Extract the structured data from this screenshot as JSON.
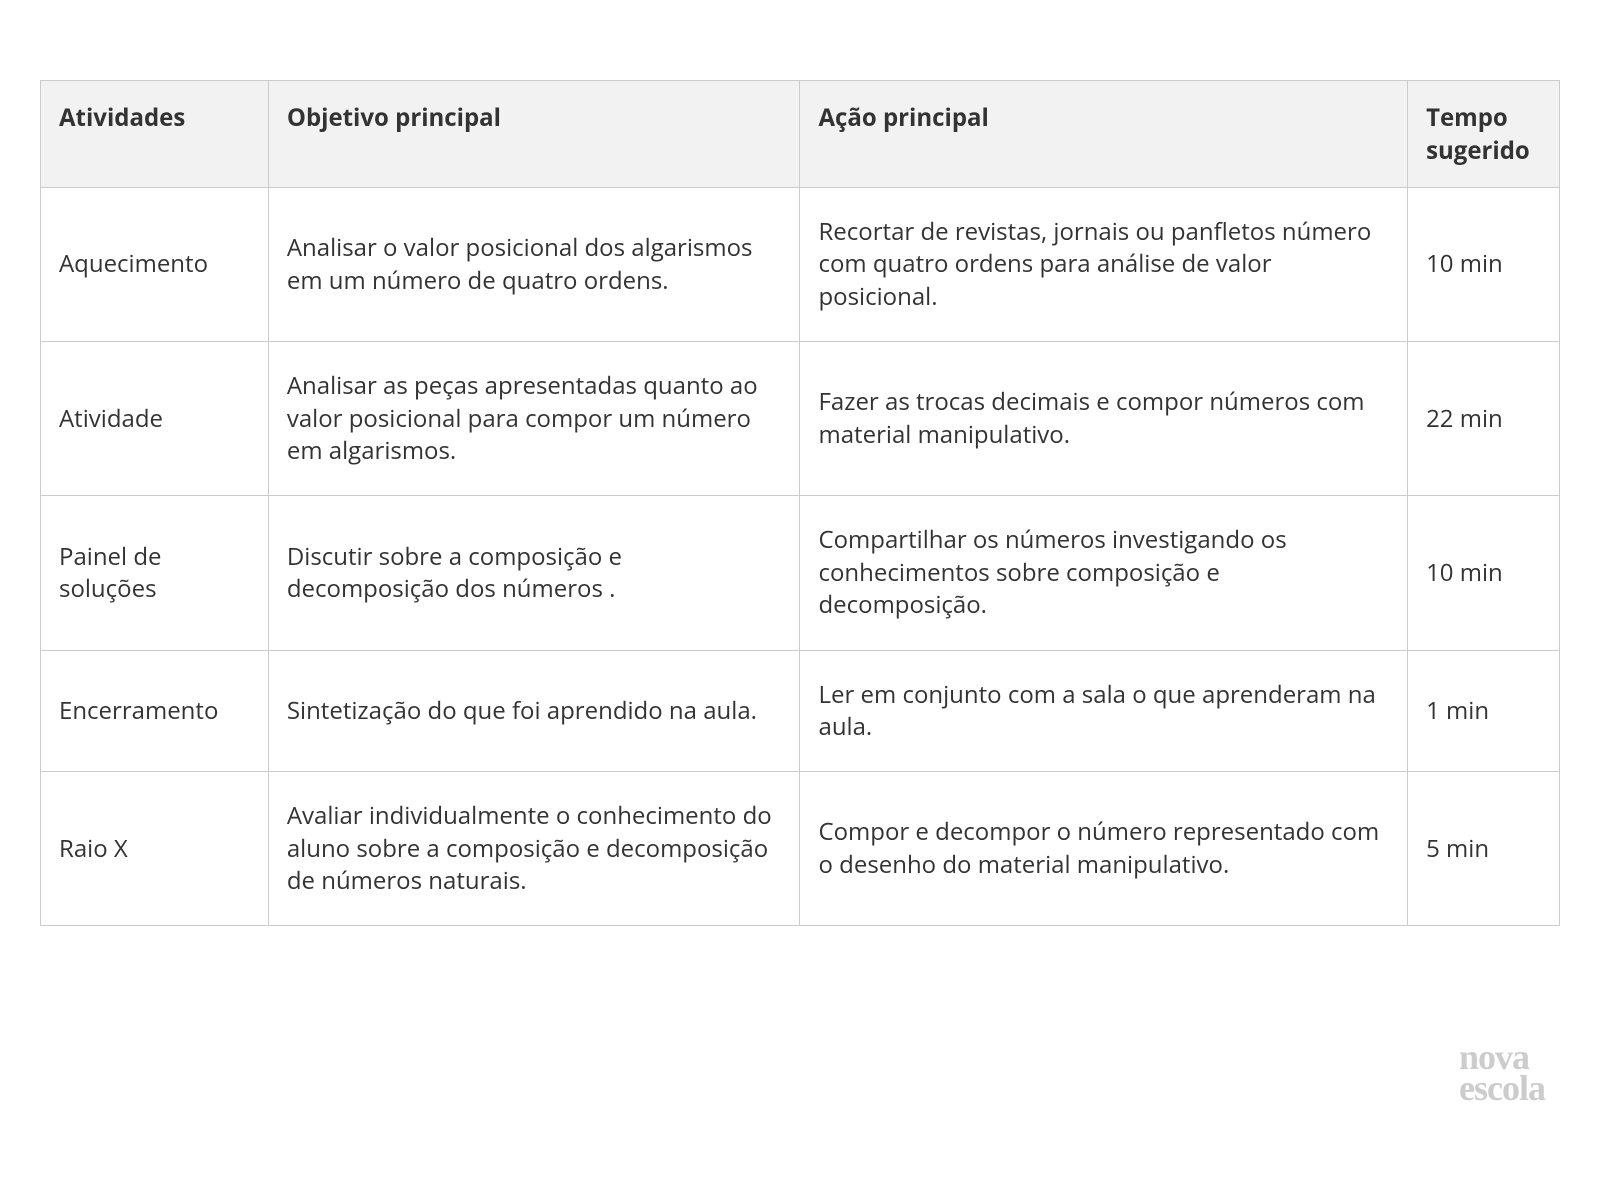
{
  "table": {
    "columns": [
      "Atividades",
      "Objetivo principal",
      "Ação principal",
      "Tempo sugerido"
    ],
    "rows": [
      {
        "atividade": "Aquecimento",
        "objetivo": "Analisar o valor posicional dos algarismos em um número de quatro ordens.",
        "acao": "Recortar de revistas, jornais ou panfletos número com quatro ordens para  análise de valor posicional.",
        "tempo": "10 min"
      },
      {
        "atividade": "Atividade",
        "objetivo": "Analisar as peças apresentadas quanto ao valor posicional para compor um número em algarismos.",
        "acao": "Fazer as trocas decimais e compor números com material manipulativo.",
        "tempo": "22 min"
      },
      {
        "atividade": "Painel de soluções",
        "objetivo": "Discutir sobre a composição e decomposição  dos números .",
        "acao": "Compartilhar os números investigando  os conhecimentos sobre composição e decomposição.",
        "tempo": "10  min"
      },
      {
        "atividade": "Encerramento",
        "objetivo": "Sintetização do que foi aprendido na aula.",
        "acao": "Ler em conjunto com a sala o que aprenderam na aula.",
        "tempo": "1 min"
      },
      {
        "atividade": "Raio X",
        "objetivo": "Avaliar individualmente o conhecimento do aluno sobre a composição e decomposição de números naturais.",
        "acao": "Compor e decompor o número representado com o desenho do material manipulativo.",
        "tempo": "5 min"
      }
    ]
  },
  "logo": {
    "line1": "nova",
    "line2": "escola"
  }
}
